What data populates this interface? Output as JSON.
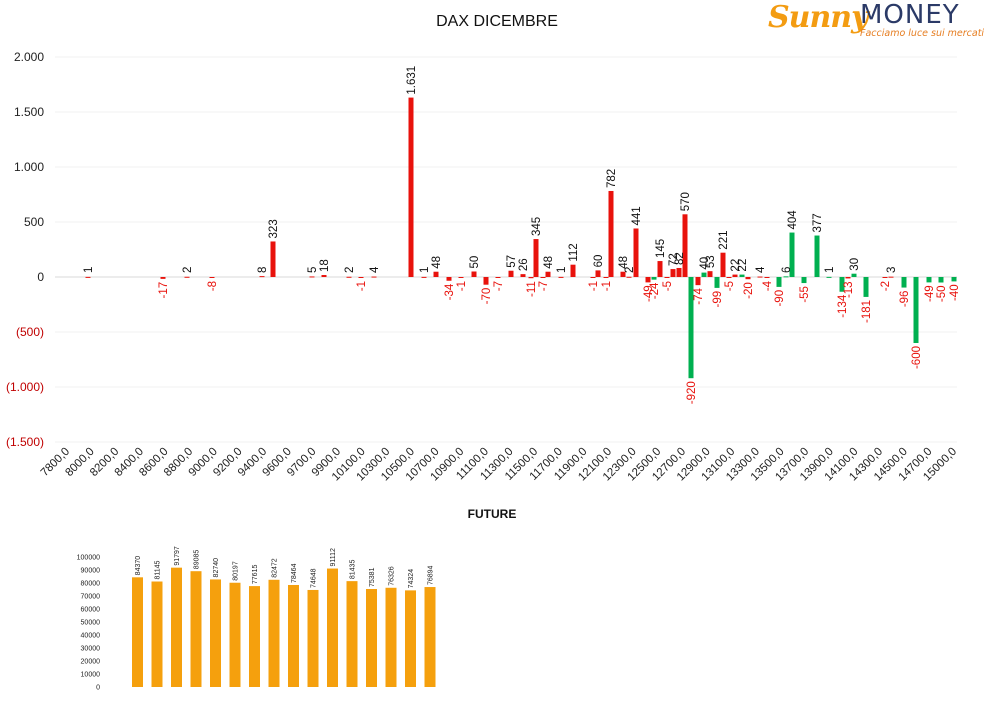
{
  "logo": {
    "brand_sunny": "Sunny",
    "brand_money": "MONEY",
    "tagline": "Facciamo luce sui mercati"
  },
  "colors": {
    "positive": "#e8120c",
    "negative_label": "#e8120c",
    "green": "#00b050",
    "future_bar": "#f5a00d"
  },
  "chart_data": [
    {
      "type": "bar",
      "title": "DAX DICEMBRE",
      "ylim": [
        -1500,
        2000
      ],
      "y_ticks": [
        {
          "value": 2000,
          "label": "2.000"
        },
        {
          "value": 1500,
          "label": "1.500"
        },
        {
          "value": 1000,
          "label": "1.000"
        },
        {
          "value": 500,
          "label": "500"
        },
        {
          "value": 0,
          "label": "0"
        },
        {
          "value": -500,
          "label": "(500)"
        },
        {
          "value": -1000,
          "label": "(1.000)"
        },
        {
          "value": -1500,
          "label": "(1.500)"
        }
      ],
      "categories": [
        "7800,0",
        "8000,0",
        "8200,0",
        "8400,0",
        "8600,0",
        "8800,0",
        "9000,0",
        "9200,0",
        "9400,0",
        "9600,0",
        "9700,0",
        "9900,0",
        "10100,0",
        "10300,0",
        "10500,0",
        "10700,0",
        "10900,0",
        "11100,0",
        "11300,0",
        "11500,0",
        "11700,0",
        "11900,0",
        "12100,0",
        "12300,0",
        "12500,0",
        "12700,0",
        "12900,0",
        "13100,0",
        "13300,0",
        "13500,0",
        "13700,0",
        "13900,0",
        "14100,0",
        "14300,0",
        "14500,0",
        "14700,0",
        "15000,0"
      ],
      "series": [
        {
          "values": [
            {
              "x": 88,
              "v": 1,
              "c": "red",
              "l": "1"
            },
            {
              "x": 163,
              "v": -17,
              "c": "red",
              "l": "-17"
            },
            {
              "x": 187,
              "v": 2,
              "c": "red",
              "l": "2"
            },
            {
              "x": 212,
              "v": -8,
              "c": "red",
              "l": "-8"
            },
            {
              "x": 262,
              "v": 8,
              "c": "red",
              "l": "8"
            },
            {
              "x": 273,
              "v": 323,
              "c": "red",
              "l": "323"
            },
            {
              "x": 312,
              "v": 5,
              "c": "red",
              "l": "5"
            },
            {
              "x": 324,
              "v": 18,
              "c": "red",
              "l": "18"
            },
            {
              "x": 349,
              "v": 2,
              "c": "red",
              "l": "2"
            },
            {
              "x": 361,
              "v": -1,
              "c": "red",
              "l": "-1"
            },
            {
              "x": 374,
              "v": 4,
              "c": "red",
              "l": "4"
            },
            {
              "x": 411,
              "v": 1631,
              "c": "red",
              "l": "1.631"
            },
            {
              "x": 424,
              "v": 1,
              "c": "red",
              "l": "1"
            },
            {
              "x": 436,
              "v": 48,
              "c": "red",
              "l": "48"
            },
            {
              "x": 449,
              "v": -34,
              "c": "red",
              "l": "-34"
            },
            {
              "x": 461,
              "v": -1,
              "c": "red",
              "l": "-1"
            },
            {
              "x": 474,
              "v": 50,
              "c": "red",
              "l": "50"
            },
            {
              "x": 486,
              "v": -70,
              "c": "red",
              "l": "-70"
            },
            {
              "x": 498,
              "v": -7,
              "c": "red",
              "l": "-7"
            },
            {
              "x": 511,
              "v": 57,
              "c": "red",
              "l": "57"
            },
            {
              "x": 523,
              "v": 26,
              "c": "red",
              "l": "26"
            },
            {
              "x": 531,
              "v": -11,
              "c": "red",
              "l": "-11"
            },
            {
              "x": 536,
              "v": 345,
              "c": "red",
              "l": "345"
            },
            {
              "x": 543,
              "v": -7,
              "c": "red",
              "l": "-7"
            },
            {
              "x": 548,
              "v": 48,
              "c": "red",
              "l": "48"
            },
            {
              "x": 561,
              "v": 1,
              "c": "red",
              "l": "1"
            },
            {
              "x": 573,
              "v": 112,
              "c": "red",
              "l": "112"
            },
            {
              "x": 593,
              "v": -1,
              "c": "red",
              "l": "-1"
            },
            {
              "x": 598,
              "v": 60,
              "c": "red",
              "l": "60"
            },
            {
              "x": 606,
              "v": -1,
              "c": "red",
              "l": "-1"
            },
            {
              "x": 611,
              "v": 782,
              "c": "red",
              "l": "782"
            },
            {
              "x": 623,
              "v": 48,
              "c": "red",
              "l": "48"
            },
            {
              "x": 629,
              "v": 2,
              "c": "red",
              "l": "2"
            },
            {
              "x": 636,
              "v": 441,
              "c": "red",
              "l": "441"
            },
            {
              "x": 648,
              "v": -49,
              "c": "red",
              "l": "-49"
            },
            {
              "x": 654,
              "v": -24,
              "c": "green",
              "l": "-24"
            },
            {
              "x": 660,
              "v": 145,
              "c": "red",
              "l": "145"
            },
            {
              "x": 667,
              "v": -5,
              "c": "red",
              "l": "-5"
            },
            {
              "x": 673,
              "v": 72,
              "c": "red",
              "l": "72"
            },
            {
              "x": 679,
              "v": 82,
              "c": "red",
              "l": "82"
            },
            {
              "x": 685,
              "v": 570,
              "c": "red",
              "l": "570"
            },
            {
              "x": 691,
              "v": -920,
              "c": "green",
              "l": "-920"
            },
            {
              "x": 698,
              "v": -74,
              "c": "red",
              "l": "-74"
            },
            {
              "x": 704,
              "v": 40,
              "c": "green",
              "l": "40"
            },
            {
              "x": 710,
              "v": 53,
              "c": "red",
              "l": "53"
            },
            {
              "x": 717,
              "v": -99,
              "c": "green",
              "l": "-99"
            },
            {
              "x": 723,
              "v": 221,
              "c": "red",
              "l": "221"
            },
            {
              "x": 729,
              "v": -5,
              "c": "red",
              "l": "-5"
            },
            {
              "x": 735,
              "v": 22,
              "c": "red",
              "l": "22"
            },
            {
              "x": 742,
              "v": 22,
              "c": "green",
              "l": "22"
            },
            {
              "x": 748,
              "v": -20,
              "c": "red",
              "l": "-20"
            },
            {
              "x": 760,
              "v": 4,
              "c": "red",
              "l": "4"
            },
            {
              "x": 767,
              "v": -4,
              "c": "red",
              "l": "-4"
            },
            {
              "x": 779,
              "v": -90,
              "c": "green",
              "l": "-90"
            },
            {
              "x": 786,
              "v": 6,
              "c": "green",
              "l": "6"
            },
            {
              "x": 792,
              "v": 404,
              "c": "green",
              "l": "404"
            },
            {
              "x": 804,
              "v": -55,
              "c": "green",
              "l": "-55"
            },
            {
              "x": 817,
              "v": 377,
              "c": "green",
              "l": "377"
            },
            {
              "x": 829,
              "v": 1,
              "c": "green",
              "l": "1"
            },
            {
              "x": 842,
              "v": -134,
              "c": "green",
              "l": "-134"
            },
            {
              "x": 848,
              "v": -13,
              "c": "red",
              "l": "-13"
            },
            {
              "x": 854,
              "v": 30,
              "c": "green",
              "l": "30"
            },
            {
              "x": 866,
              "v": -181,
              "c": "green",
              "l": "-181"
            },
            {
              "x": 885,
              "v": -2,
              "c": "red",
              "l": "-2"
            },
            {
              "x": 891,
              "v": 3,
              "c": "red",
              "l": "3"
            },
            {
              "x": 904,
              "v": -96,
              "c": "green",
              "l": "-96"
            },
            {
              "x": 916,
              "v": -600,
              "c": "green",
              "l": "-600"
            },
            {
              "x": 929,
              "v": -49,
              "c": "green",
              "l": "-49"
            },
            {
              "x": 941,
              "v": -50,
              "c": "green",
              "l": "-50"
            },
            {
              "x": 954,
              "v": -40,
              "c": "green",
              "l": "-40"
            }
          ]
        }
      ],
      "grid": true
    },
    {
      "type": "bar",
      "title": "FUTURE",
      "ylim": [
        0,
        100000
      ],
      "y_ticks": [
        100000,
        90000,
        80000,
        70000,
        60000,
        50000,
        40000,
        30000,
        20000,
        10000,
        0
      ],
      "values": [
        84370,
        81145,
        91797,
        89085,
        82740,
        80197,
        77615,
        82472,
        78464,
        74648,
        91112,
        81435,
        75381,
        76326,
        74324,
        76894
      ]
    }
  ]
}
